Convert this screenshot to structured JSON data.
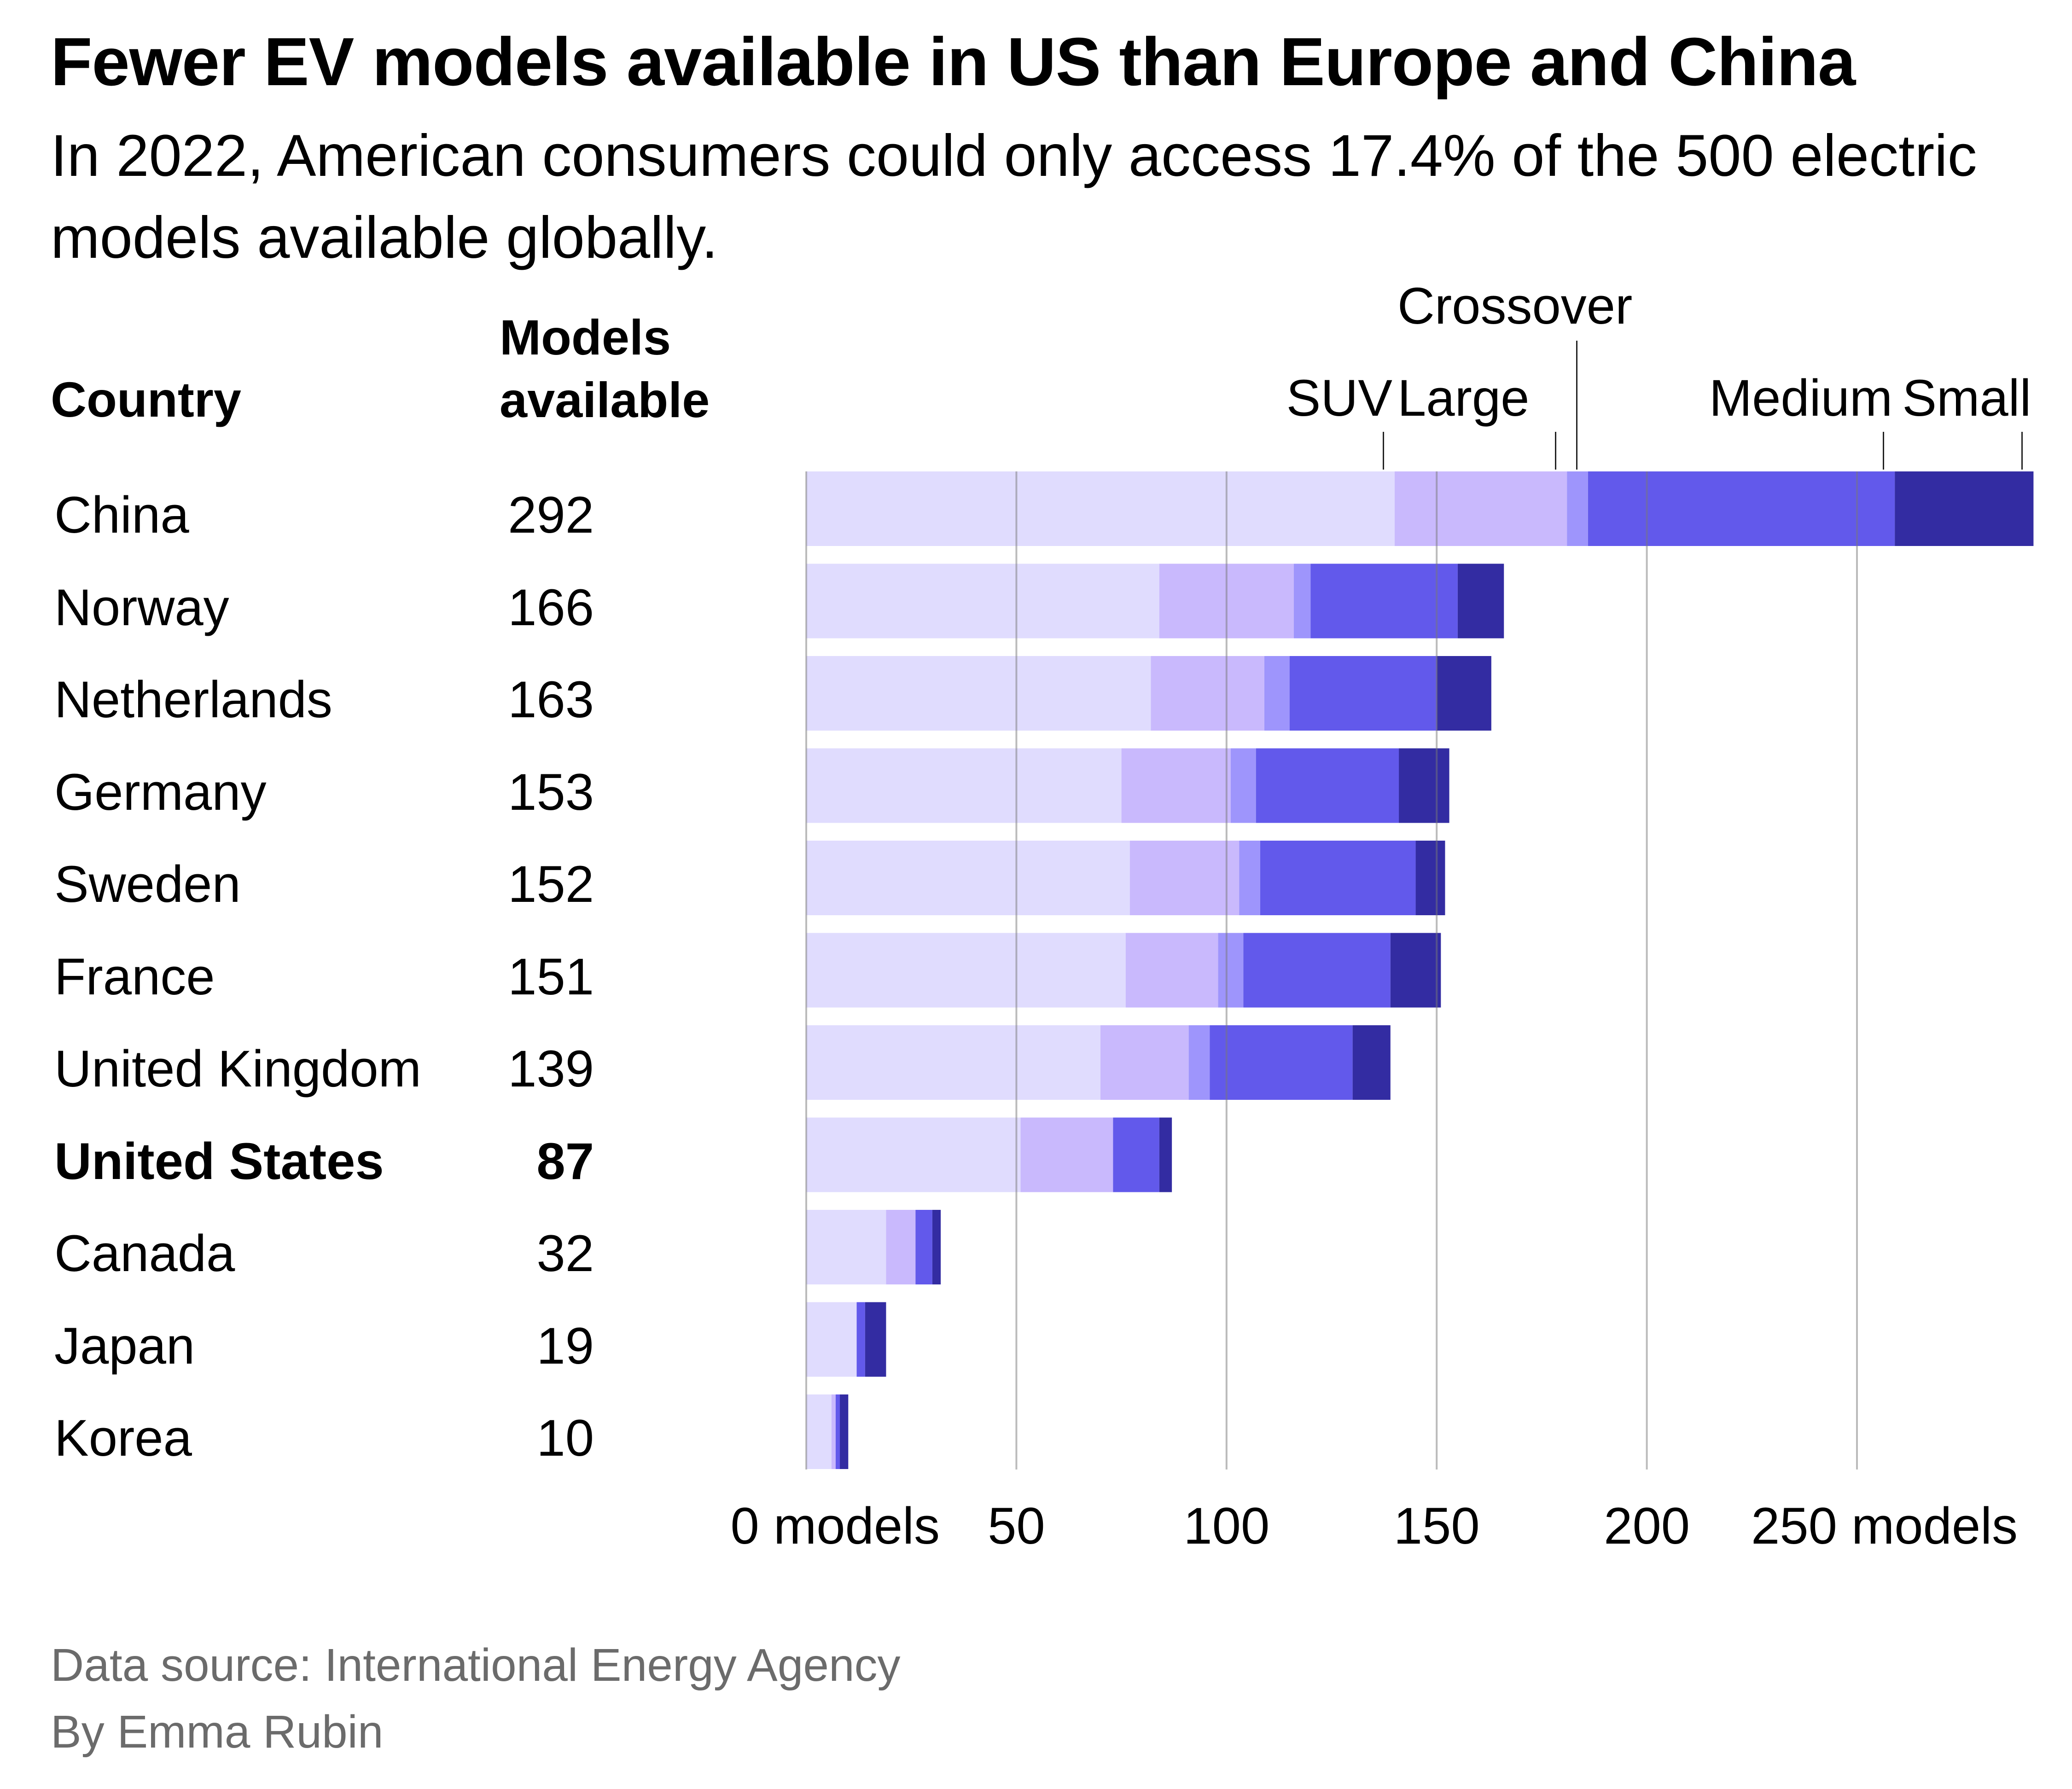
{
  "header": {
    "title": "Fewer EV models available in US than Europe and China",
    "subtitle": "In 2022, American consumers could only access 17.4% of the 500 electric models available globally."
  },
  "table_headers": {
    "country": "Country",
    "models_line1": "Models",
    "models_line2": "available"
  },
  "footer": {
    "source": "Data source: International Energy Agency",
    "byline": "By Emma Rubin"
  },
  "chart_data": {
    "type": "bar",
    "orientation": "horizontal",
    "stacked": true,
    "title": "Fewer EV models available in US than Europe and China",
    "subtitle": "In 2022, American consumers could only access 17.4% of the 500 electric models available globally.",
    "xlabel": "models",
    "ylabel": "Country",
    "xlim": [
      0,
      292
    ],
    "grid": true,
    "legend_placement": "top (direct labels over China bar)",
    "x_ticks": [
      0,
      50,
      100,
      150,
      200,
      250
    ],
    "x_tick_labels": [
      "0 models",
      "50",
      "100",
      "150",
      "200",
      "250 models"
    ],
    "categories": [
      "China",
      "Norway",
      "Netherlands",
      "Germany",
      "Sweden",
      "France",
      "United Kingdom",
      "United States",
      "Canada",
      "Japan",
      "Korea"
    ],
    "highlight_category": "United States",
    "totals": [
      292,
      166,
      163,
      153,
      152,
      151,
      139,
      87,
      32,
      19,
      10
    ],
    "series": [
      {
        "name": "SUV",
        "color": "#e0dcfe",
        "values": [
          140,
          84,
          82,
          75,
          77,
          76,
          70,
          51,
          19,
          12,
          6
        ]
      },
      {
        "name": "Large",
        "color": "#c9b9fd",
        "values": [
          41,
          32,
          27,
          26,
          26,
          22,
          21,
          22,
          7,
          0,
          1
        ]
      },
      {
        "name": "Crossover",
        "color": "#9e95fc",
        "values": [
          5,
          4,
          6,
          6,
          5,
          6,
          5,
          0,
          0,
          0,
          0
        ]
      },
      {
        "name": "Medium",
        "color": "#6259eb",
        "values": [
          73,
          35,
          35,
          34,
          37,
          35,
          34,
          11,
          4,
          2,
          1
        ]
      },
      {
        "name": "Small",
        "color": "#332ca2",
        "values": [
          33,
          11,
          13,
          12,
          7,
          12,
          9,
          3,
          2,
          5,
          2
        ]
      }
    ]
  }
}
